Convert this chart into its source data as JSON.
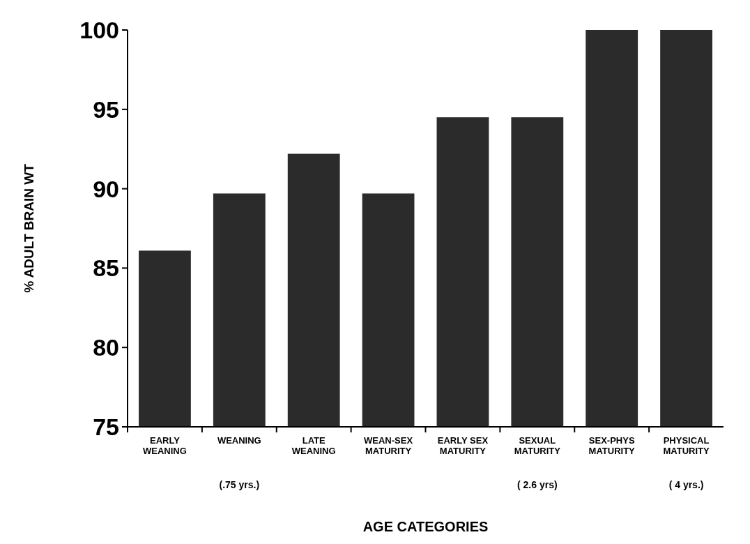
{
  "chart_data": {
    "type": "bar",
    "xlabel": "AGE CATEGORIES",
    "ylabel": "% ADULT BRAIN WT",
    "categories": [
      "EARLY WEANING",
      "WEANING",
      "LATE WEANING",
      "WEAN-SEX MATURITY",
      "EARLY SEX MATURITY",
      "SEXUAL MATURITY",
      "SEX-PHYS MATURITY",
      "PHYSICAL MATURITY"
    ],
    "values": [
      86.1,
      89.7,
      92.2,
      89.7,
      94.5,
      94.5,
      100,
      100
    ],
    "color": "#2b2b2b",
    "ylim": [
      75,
      100
    ],
    "yticks": [
      75,
      80,
      85,
      90,
      95,
      100
    ],
    "grid": false,
    "annotations": [
      "(.75 yrs.)",
      "( 2.6 yrs)",
      "( 4 yrs.)"
    ]
  }
}
